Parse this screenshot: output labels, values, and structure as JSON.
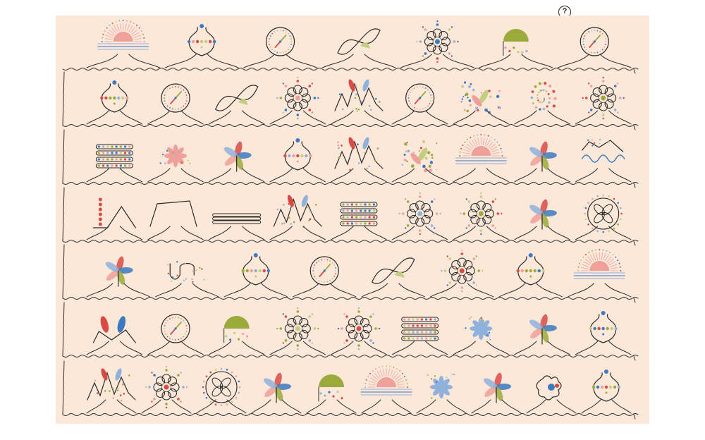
{
  "help_button": {
    "label": "?"
  },
  "colors": {
    "background": "#fbe8d9",
    "line": "#2a2a2a",
    "red": "#d94a45",
    "pink": "#f0a09a",
    "blue": "#3b79c2",
    "light_blue": "#8fb2dc",
    "olive": "#9aab3c",
    "light_olive": "#c3cd82"
  },
  "rows": [
    {
      "row": 1,
      "glyphs": [
        "sunrise",
        "vase",
        "clock",
        "loop",
        "flower",
        "fan",
        "clock"
      ]
    },
    {
      "row": 2,
      "glyphs": [
        "vase",
        "clock",
        "loop",
        "flower",
        "peaks",
        "clock",
        "scatter",
        "spiral",
        "flower"
      ]
    },
    {
      "row": 3,
      "glyphs": [
        "bars",
        "petal-flower",
        "pinwheel",
        "vase",
        "peaks",
        "scatter",
        "sunrise",
        "pinwheel",
        "waves"
      ]
    },
    {
      "row": 4,
      "glyphs": [
        "dots",
        "plateau",
        "capsule",
        "peaks",
        "bars",
        "flower",
        "flower",
        "pinwheel",
        "clover"
      ]
    },
    {
      "row": 5,
      "glyphs": [
        "pinwheel",
        "wave-cup",
        "vase",
        "clock",
        "loop",
        "flower",
        "vase",
        "sunrise"
      ]
    },
    {
      "row": 6,
      "glyphs": [
        "petals",
        "clock",
        "fan",
        "flower",
        "flower",
        "bars",
        "petal-flower",
        "pinwheel",
        "vase"
      ]
    },
    {
      "row": 7,
      "glyphs": [
        "peaks",
        "flower",
        "clover",
        "pinwheel",
        "fan",
        "sunrise",
        "petal-flower",
        "pinwheel",
        "blob",
        "vase"
      ]
    }
  ]
}
